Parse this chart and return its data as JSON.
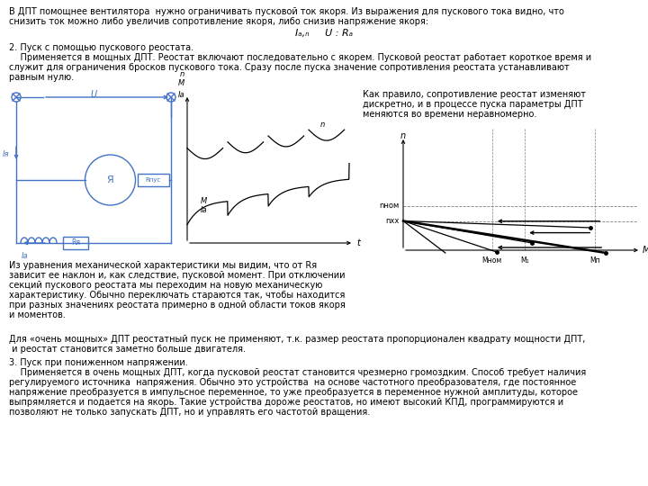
{
  "bg_color": "#ffffff",
  "text_color": "#000000",
  "diagram_color": "#4472c4",
  "fs": 7.0,
  "top_text_1": "В ДПТ помощнее вентилятора  нужно ограничивать пусковой ток якоря. Из выражения для пускового тока видно, что",
  "top_text_2": "снизить ток можно либо увеличив сопротивление якоря, либо снизив напряжение якоря:",
  "formula": "Iₐ,ₙ     U : Rₐ",
  "section2_title": "2. Пуск с помощью пускового реостата.",
  "section2_p1": "    Применяется в мощных ДПТ. Реостат включают последовательно с якорем. Пусковой реостат работает короткое время и",
  "section2_p2": "служит для ограничения бросков пускового тока. Сразу после пуска значение сопротивления реостата устанавливают",
  "section2_p3": "равным нулю.",
  "right_text_1": "Как правило, сопротивление реостат изменяют",
  "right_text_2": "дискретно, и в процессе пуска параметры ДПТ",
  "right_text_3": "меняются во времени неравномерно.",
  "bottom_left_text": [
    "Из уравнения механической характеристики мы видим, что от Rя",
    "зависит ее наклон и, как следствие, пусковой момент. При отключении",
    "секций пускового реостата мы переходим на новую механическую",
    "характеристику. Обычно переключать стараются так, чтобы находится",
    "при разных значениях реостата примерно в одной области токов якоря",
    "и моментов."
  ],
  "bottom_para_1": "Для «очень мощных» ДПТ реостатный пуск не применяют, т.к. размер реостата пропорционален квадрату мощности ДПТ,",
  "bottom_para_2": " и реостат становится заметно больше двигателя.",
  "section3_title": "3. Пуск при пониженном напряжении.",
  "section3_text": [
    "    Применяется в очень мощных ДПТ, когда пусковой реостат становится чрезмерно громоздким. Способ требует наличия",
    "регулируемого источника  напряжения. Обычно это устройства  на основе частотного преобразователя, где постоянное",
    "напряжение преобразуется в импульсное переменное, то уже преобразуется в переменное нужной амплитуды, которое",
    "выпрямляется и подается на якорь. Такие устройства дороже реостатов, но имеют высокий КПД, программируются и",
    "позволяют не только запускать ДПТ, но и управлять его частотой вращения."
  ],
  "n_xx_label": "nхх",
  "n_nom_label": "nном",
  "M_nom_label": "Mном",
  "M1_label": "M₁",
  "Mn_label": "Mп",
  "M_label": "M"
}
